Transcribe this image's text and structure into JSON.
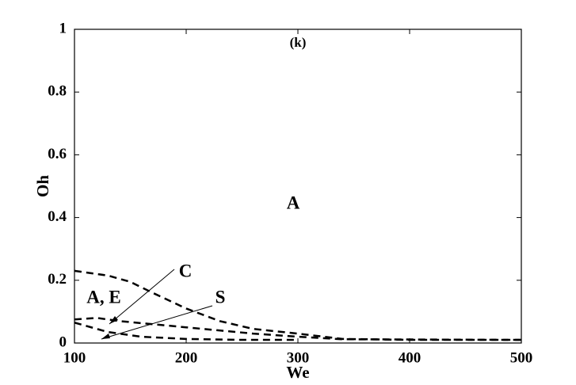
{
  "chart_data": {
    "type": "line",
    "xlabel": "We",
    "ylabel": "Oh",
    "xlim": [
      100,
      500
    ],
    "ylim": [
      0,
      1
    ],
    "xticks": [
      100,
      200,
      300,
      400,
      500
    ],
    "yticks": [
      0,
      0.2,
      0.4,
      0.6,
      0.8,
      1
    ],
    "series": [
      {
        "color": "#000000",
        "x": [
          100,
          130,
          150,
          170,
          200,
          230,
          260,
          300,
          340,
          400,
          500
        ],
        "values": [
          0.23,
          0.215,
          0.195,
          0.16,
          0.11,
          0.07,
          0.045,
          0.03,
          0.013,
          0.01,
          0.01
        ]
      },
      {
        "color": "#000000",
        "x": [
          100,
          120,
          140,
          200,
          260,
          300,
          340,
          500
        ],
        "values": [
          0.075,
          0.08,
          0.07,
          0.05,
          0.03,
          0.02,
          0.012,
          0.01
        ]
      },
      {
        "color": "#000000",
        "x": [
          100,
          130,
          160,
          200,
          250,
          300
        ],
        "values": [
          0.065,
          0.035,
          0.02,
          0.013,
          0.01,
          0.01
        ]
      }
    ],
    "annotations": [
      "(k)",
      "A",
      "A, E",
      "C",
      "S"
    ]
  }
}
